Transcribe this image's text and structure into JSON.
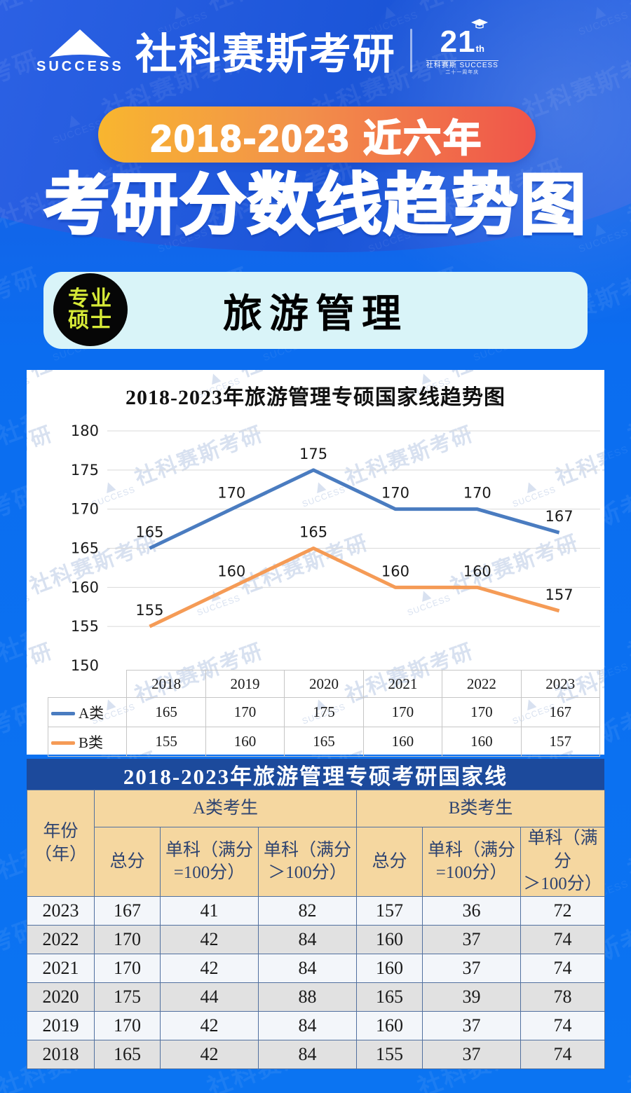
{
  "page": {
    "bg_blue": "#0b6df0",
    "navy": "#1c4a9c",
    "tan": "#f5d7a0",
    "banner_gradient": [
      "#f8b62f",
      "#f0544a"
    ],
    "badge_text_color": "#d6e937",
    "subject_box_color": "#d9f4f8"
  },
  "header": {
    "logo_text": "SUCCESS",
    "brand": "社科赛斯考研",
    "anniversary": {
      "number": "21",
      "suffix": "th",
      "sub_left": "社科赛斯",
      "sub_right": "SUCCESS",
      "sub_small": "二十一周年庆"
    }
  },
  "banner": {
    "label": "2018-2023 近六年"
  },
  "main_title": "考研分数线趋势图",
  "subject": {
    "badge_line1": "专业",
    "badge_line2": "硕士",
    "title": "旅游管理"
  },
  "watermark": {
    "triangle": "▲",
    "success": "SUCCESS",
    "text": "社科赛斯考研"
  },
  "chart_data": {
    "type": "line",
    "title": "2018-2023年旅游管理专硕国家线趋势图",
    "categories": [
      "2018",
      "2019",
      "2020",
      "2021",
      "2022",
      "2023"
    ],
    "series": [
      {
        "name": "A类",
        "color": "#4a7cc0",
        "values": [
          165,
          170,
          175,
          170,
          170,
          167
        ]
      },
      {
        "name": "B类",
        "color": "#f59b56",
        "values": [
          155,
          160,
          165,
          160,
          160,
          157
        ]
      }
    ],
    "ylim": [
      150,
      180
    ],
    "ytick_step": 5,
    "grid": true,
    "legend_position": "bottom-table"
  },
  "score_table": {
    "title": "2018-2023年旅游管理专硕考研国家线",
    "year_header": "年份\n（年）",
    "group_headers": [
      "A类考生",
      "B类考生"
    ],
    "sub_headers": [
      "总分",
      "单科（满分\n=100分）",
      "单科（满分\n＞100分）",
      "总分",
      "单科（满分\n=100分）",
      "单科（满分\n＞100分）"
    ],
    "rows": [
      {
        "year": "2023",
        "values": [
          "167",
          "41",
          "82",
          "157",
          "36",
          "72"
        ]
      },
      {
        "year": "2022",
        "values": [
          "170",
          "42",
          "84",
          "160",
          "37",
          "74"
        ]
      },
      {
        "year": "2021",
        "values": [
          "170",
          "42",
          "84",
          "160",
          "37",
          "74"
        ]
      },
      {
        "year": "2020",
        "values": [
          "175",
          "44",
          "88",
          "165",
          "39",
          "78"
        ]
      },
      {
        "year": "2019",
        "values": [
          "170",
          "42",
          "84",
          "160",
          "37",
          "74"
        ]
      },
      {
        "year": "2018",
        "values": [
          "165",
          "42",
          "84",
          "155",
          "37",
          "74"
        ]
      }
    ]
  }
}
